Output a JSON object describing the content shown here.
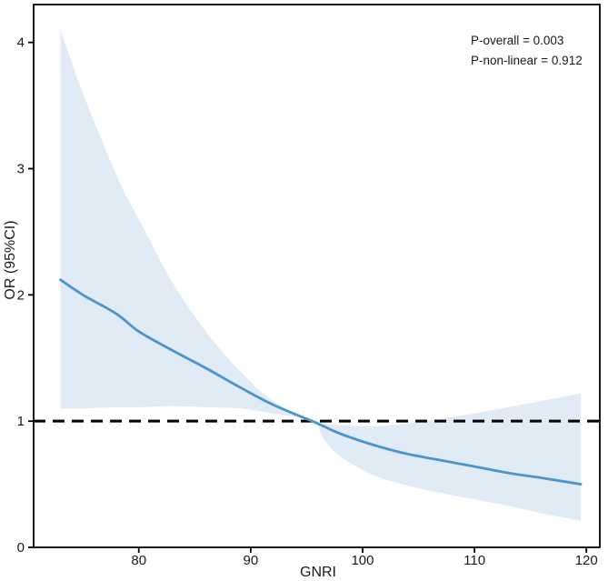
{
  "chart_data": {
    "type": "line",
    "title": "",
    "xlabel": "GNRI",
    "ylabel": "OR (95%CI)",
    "xlim": [
      70.6,
      121.2
    ],
    "ylim": [
      0,
      4.3
    ],
    "x_ticks": [
      80,
      90,
      100,
      110,
      120
    ],
    "y_ticks": [
      0,
      1,
      2,
      3,
      4
    ],
    "grid": false,
    "legend": "none",
    "reference_line": {
      "y": 1,
      "style": "dashed",
      "color": "#000000"
    },
    "annotations": [
      {
        "text": "P-overall = 0.003"
      },
      {
        "text": "P-non-linear = 0.912"
      }
    ],
    "x": [
      73,
      75,
      78,
      80,
      83,
      86,
      89,
      92,
      95.5,
      96.5,
      98,
      101,
      104,
      107,
      110,
      113,
      116,
      119.5
    ],
    "series": [
      {
        "name": "OR",
        "type": "line",
        "values": [
          2.12,
          2.0,
          1.85,
          1.71,
          1.56,
          1.42,
          1.27,
          1.13,
          1.0,
          0.96,
          0.9,
          0.81,
          0.74,
          0.69,
          0.64,
          0.59,
          0.55,
          0.5
        ]
      },
      {
        "name": "95% CI upper",
        "type": "band-upper",
        "values": [
          4.1,
          3.6,
          2.95,
          2.6,
          2.1,
          1.71,
          1.4,
          1.16,
          1.0,
          0.98,
          0.97,
          0.96,
          0.98,
          1.02,
          1.06,
          1.11,
          1.16,
          1.22
        ]
      },
      {
        "name": "95% CI lower",
        "type": "band-lower",
        "values": [
          1.1,
          1.1,
          1.11,
          1.11,
          1.12,
          1.11,
          1.1,
          1.06,
          1.0,
          0.86,
          0.72,
          0.57,
          0.49,
          0.43,
          0.38,
          0.33,
          0.27,
          0.21
        ]
      }
    ]
  },
  "colors": {
    "line": "#4d94cb",
    "band": "#e1ebf6",
    "axis": "#000000",
    "text": "#1a1a1a",
    "background": "#ffffff"
  }
}
